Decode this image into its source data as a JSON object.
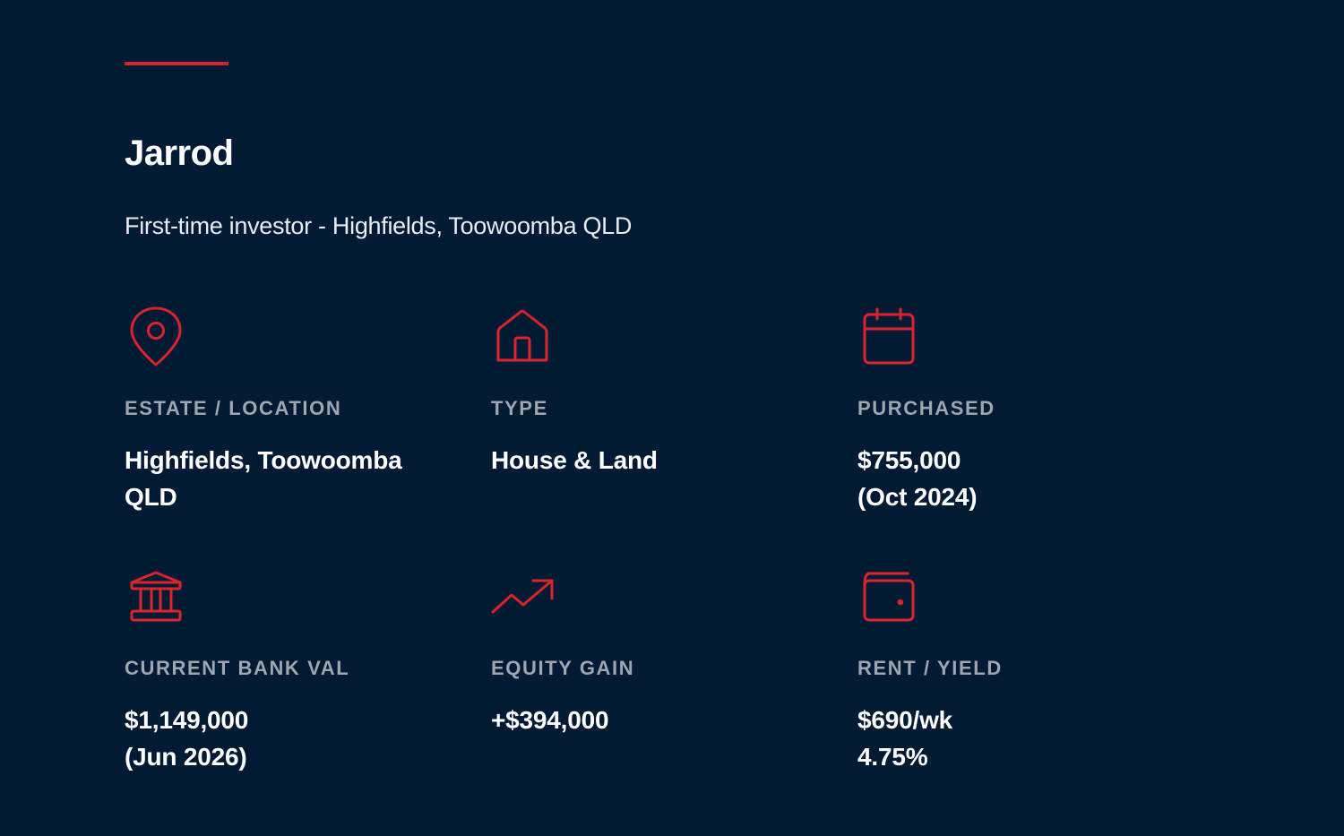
{
  "profile": {
    "name": "Jarrod",
    "subtitle": "First-time investor - Highfields, Toowoomba QLD"
  },
  "colors": {
    "background": "#021a33",
    "accent": "#d9242c",
    "label": "#9ea6b0",
    "text": "#ffffff"
  },
  "stats": [
    {
      "icon": "map-pin-icon",
      "label": "ESTATE / LOCATION",
      "value_lines": [
        "Highfields, Toowoomba",
        "QLD"
      ]
    },
    {
      "icon": "house-icon",
      "label": "TYPE",
      "value_lines": [
        "House & Land"
      ]
    },
    {
      "icon": "calendar-icon",
      "label": "PURCHASED",
      "value_lines": [
        "$755,000",
        "(Oct 2024)"
      ]
    },
    {
      "icon": "bank-icon",
      "label": "CURRENT BANK VAL",
      "value_lines": [
        "$1,149,000",
        "(Jun 2026)"
      ]
    },
    {
      "icon": "trending-up-icon",
      "label": "EQUITY GAIN",
      "value_lines": [
        "+$394,000"
      ]
    },
    {
      "icon": "wallet-icon",
      "label": "RENT / YIELD",
      "value_lines": [
        "$690/wk",
        "4.75%"
      ]
    }
  ]
}
